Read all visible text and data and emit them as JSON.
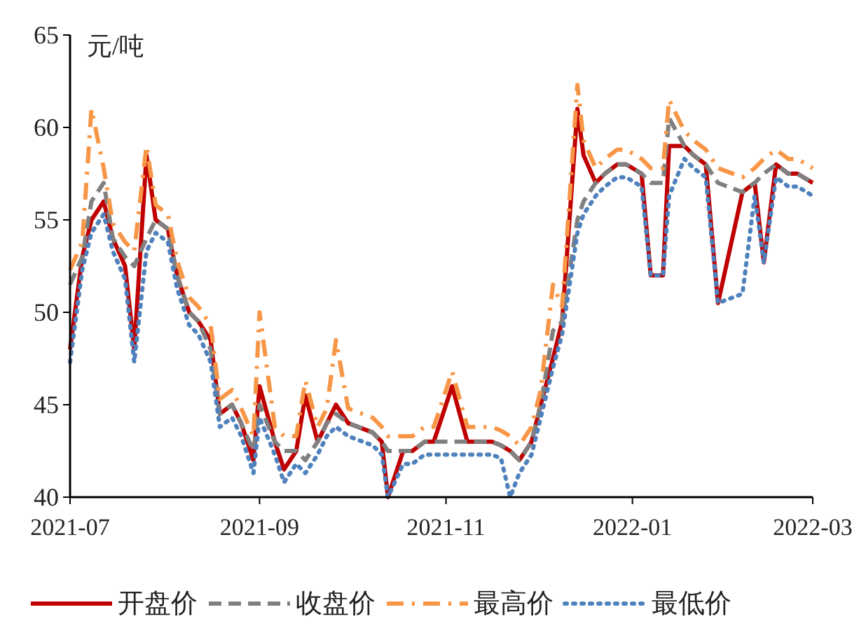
{
  "chart_data": {
    "type": "line",
    "ylabel": "元/吨",
    "legend": "bottom",
    "grid": false,
    "x": [
      "2021-07-01",
      "2021-07-05",
      "2021-07-08",
      "2021-07-12",
      "2021-07-15",
      "2021-07-19",
      "2021-07-22",
      "2021-07-26",
      "2021-07-29",
      "2021-08-02",
      "2021-08-05",
      "2021-08-09",
      "2021-08-12",
      "2021-08-16",
      "2021-08-19",
      "2021-08-23",
      "2021-08-26",
      "2021-08-30",
      "2021-09-01",
      "2021-09-06",
      "2021-09-09",
      "2021-09-13",
      "2021-09-16",
      "2021-09-20",
      "2021-09-23",
      "2021-09-26",
      "2021-09-30",
      "2021-10-08",
      "2021-10-11",
      "2021-10-13",
      "2021-10-18",
      "2021-10-21",
      "2021-10-25",
      "2021-10-28",
      "2021-11-03",
      "2021-11-08",
      "2021-11-11",
      "2021-11-16",
      "2021-11-19",
      "2021-11-22",
      "2021-11-25",
      "2021-11-29",
      "2021-12-02",
      "2021-12-06",
      "2021-12-09",
      "2021-12-14",
      "2021-12-16",
      "2021-12-20",
      "2021-12-23",
      "2021-12-27",
      "2021-12-30",
      "2022-01-04",
      "2022-01-07",
      "2022-01-11",
      "2022-01-13",
      "2022-01-18",
      "2022-01-21",
      "2022-01-25",
      "2022-01-29",
      "2022-02-06",
      "2022-02-10",
      "2022-02-13",
      "2022-02-17",
      "2022-02-21",
      "2022-02-24",
      "2022-03-01"
    ],
    "xlim": [
      "2021-07",
      "2022-03"
    ],
    "xticks": [
      "2021-07",
      "2021-09",
      "2021-11",
      "2022-01",
      "2022-03"
    ],
    "ylim": [
      40,
      65
    ],
    "yticks": [
      40,
      45,
      50,
      55,
      60,
      65
    ],
    "series": [
      {
        "name": "开盘价",
        "color": "#c00000",
        "line_style": "solid",
        "values": [
          48,
          53,
          55,
          56,
          54,
          52.5,
          48,
          58.5,
          55,
          54.5,
          52,
          50,
          49.5,
          48.5,
          44.5,
          45,
          44,
          42,
          46,
          43,
          41.5,
          42.5,
          45.5,
          43,
          44,
          45,
          44,
          43.5,
          43,
          40,
          42.5,
          42.5,
          43,
          43,
          46,
          43,
          43,
          43,
          42.8,
          42.5,
          42,
          43,
          45,
          47.5,
          49.5,
          61,
          58.5,
          57,
          57.5,
          58,
          58,
          57.5,
          52,
          52,
          59,
          59,
          58.5,
          58,
          50.5,
          56.5,
          57,
          52.7,
          58,
          57.5,
          57.5,
          57
        ]
      },
      {
        "name": "收盘价",
        "color": "#808080",
        "line_style": "dashed",
        "values": [
          51.5,
          53,
          56,
          57,
          54,
          53,
          52.5,
          54,
          55,
          54.5,
          52,
          50,
          49.5,
          48,
          44.5,
          45,
          44,
          42.5,
          45,
          43,
          42.5,
          42.5,
          42,
          43,
          44,
          44.5,
          44,
          43.5,
          43,
          42.5,
          42.5,
          42.5,
          43,
          43,
          43,
          43,
          43,
          43,
          42.8,
          42.5,
          42,
          43,
          45,
          49,
          49.5,
          55,
          56,
          57,
          57.5,
          58,
          58,
          57.5,
          57,
          57,
          60.5,
          59,
          58.5,
          58,
          57,
          56.5,
          57,
          57.5,
          58,
          57.5,
          57.5,
          57
        ]
      },
      {
        "name": "最高价",
        "color": "#f79646",
        "line_style": "dashdot",
        "values": [
          52.3,
          53.8,
          61,
          57.8,
          54.8,
          53.8,
          53.3,
          59,
          55.8,
          55.3,
          52.8,
          50.8,
          50.3,
          49.3,
          45.3,
          45.8,
          44.8,
          43.3,
          50,
          43.8,
          43.3,
          43.3,
          46.3,
          43.8,
          44.8,
          48.5,
          44.8,
          44.3,
          43.8,
          43.3,
          43.3,
          43.3,
          43.8,
          43.8,
          46.8,
          43.8,
          43.8,
          43.8,
          43.6,
          43.3,
          42.8,
          43.8,
          45.8,
          51.5,
          50.3,
          62.3,
          59.3,
          57.8,
          58.3,
          58.8,
          58.8,
          58.3,
          57.8,
          57.8,
          61.5,
          59.8,
          59.3,
          58.8,
          57.8,
          57.3,
          57.8,
          58.3,
          58.8,
          58.3,
          58.3,
          57.8
        ]
      },
      {
        "name": "最低价",
        "color": "#4f81bd",
        "line_style": "dotted",
        "values": [
          47.3,
          52.3,
          54.3,
          55.3,
          53.3,
          51.8,
          47.3,
          53.3,
          54.3,
          53.8,
          51.3,
          49.3,
          48.8,
          47.3,
          43.8,
          44.3,
          43.3,
          41.3,
          44.3,
          42.3,
          40.8,
          41.8,
          41.3,
          42.3,
          43.3,
          43.8,
          43.3,
          42.8,
          42.3,
          40,
          41.8,
          41.8,
          42.3,
          42.3,
          42.3,
          42.3,
          42.3,
          42.3,
          42.1,
          40,
          41.3,
          42.3,
          44.3,
          47,
          48.8,
          54.3,
          55.3,
          56.3,
          56.8,
          57.3,
          57.3,
          56.8,
          52,
          52,
          56.3,
          58.3,
          57.8,
          57.3,
          50.5,
          51,
          56.3,
          52.7,
          57.3,
          56.8,
          56.8,
          56.3
        ]
      }
    ]
  }
}
